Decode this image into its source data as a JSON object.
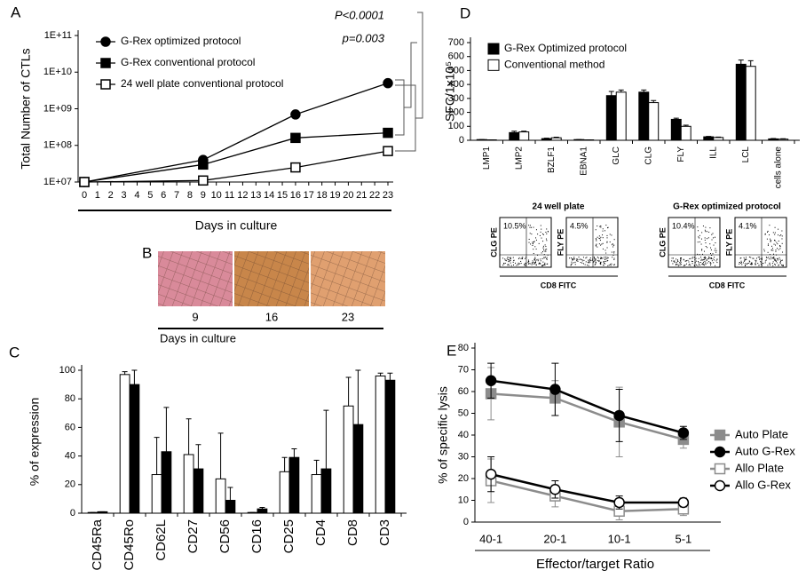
{
  "chart_data": [
    {
      "panel": "A",
      "type": "line",
      "x": [
        0,
        9,
        16,
        23
      ],
      "xlim": [
        0,
        23
      ],
      "xticks": [
        0,
        1,
        2,
        3,
        4,
        5,
        6,
        7,
        8,
        9,
        10,
        11,
        12,
        13,
        14,
        15,
        16,
        17,
        18,
        19,
        20,
        21,
        22,
        23
      ],
      "ylim": [
        10000000.0,
        100000000000.0
      ],
      "log_y": true,
      "yticks": [
        {
          "value": 10000000.0,
          "label": "1E+07"
        },
        {
          "value": 100000000.0,
          "label": "1E+08"
        },
        {
          "value": 1000000000.0,
          "label": "1E+09"
        },
        {
          "value": 10000000000.0,
          "label": "1E+10"
        },
        {
          "value": 100000000000.0,
          "label": "1E+11"
        }
      ],
      "xlabel": "Days in culture",
      "ylabel": "Total Number of CTLs",
      "annotations": [
        "P<0.0001",
        "p=0.003"
      ],
      "legend": "upper left",
      "series": [
        {
          "name": "G-Rex optimized protocol",
          "color": "#000000",
          "marker": "circle",
          "marker_fill": "#000000",
          "values": [
            10000000.0,
            40000000.0,
            700000000.0,
            5000000000.0
          ]
        },
        {
          "name": "G-Rex conventional protocol",
          "color": "#000000",
          "marker": "square",
          "marker_fill": "#000000",
          "values": [
            10000000.0,
            30000000.0,
            160000000.0,
            220000000.0
          ]
        },
        {
          "name": "24 well plate conventional protocol",
          "color": "#000000",
          "marker": "square",
          "marker_fill": "#ffffff",
          "values": [
            10000000.0,
            11000000.0,
            25000000.0,
            70000000.0
          ]
        }
      ]
    },
    {
      "panel": "C",
      "type": "bar",
      "categories": [
        "CD45Ra",
        "CD45Ro",
        "CD62L",
        "CD27",
        "CD56",
        "CD16",
        "CD25",
        "CD4",
        "CD8",
        "CD3"
      ],
      "ylim": [
        0,
        100
      ],
      "yticks": [
        0,
        20,
        40,
        60,
        80,
        100
      ],
      "ylabel": "% of expression",
      "series": [
        {
          "color": "#ffffff",
          "values": [
            0.5,
            97,
            27,
            41,
            24,
            0.5,
            29,
            27,
            75,
            96
          ],
          "errors": [
            0,
            2,
            26,
            25,
            32,
            0,
            10,
            10,
            20,
            2
          ]
        },
        {
          "color": "#000000",
          "values": [
            1,
            90,
            43,
            31,
            9,
            3,
            39,
            31,
            62,
            93
          ],
          "errors": [
            0,
            10,
            31,
            17,
            9,
            1,
            6,
            41,
            38,
            5
          ]
        }
      ]
    },
    {
      "panel": "D",
      "type": "bar",
      "categories": [
        "LMP1",
        "LMP2",
        "BZLF1",
        "EBNA1",
        "GLC",
        "CLG",
        "FLY",
        "ILL",
        "LCL",
        "cells alone"
      ],
      "ylim": [
        0,
        700
      ],
      "yticks": [
        0,
        100,
        200,
        300,
        400,
        500,
        600,
        700
      ],
      "ylabel": "SFC/1x10⁵",
      "legend": "upper left",
      "series": [
        {
          "name": "G-Rex Optimized protocol",
          "color": "#000000",
          "values": [
            5,
            55,
            12,
            5,
            320,
            345,
            150,
            25,
            545,
            10
          ],
          "errors": [
            0,
            10,
            3,
            0,
            30,
            15,
            8,
            3,
            30,
            3
          ]
        },
        {
          "name": "Conventional method",
          "color": "#ffffff",
          "values": [
            3,
            60,
            18,
            3,
            345,
            270,
            100,
            20,
            530,
            8
          ],
          "errors": [
            0,
            5,
            4,
            0,
            15,
            15,
            8,
            3,
            40,
            3
          ]
        }
      ]
    },
    {
      "panel": "E",
      "type": "line",
      "categories": [
        "40-1",
        "20-1",
        "10-1",
        "5-1"
      ],
      "ylim": [
        0,
        80
      ],
      "yticks": [
        0,
        10,
        20,
        30,
        40,
        50,
        60,
        70,
        80
      ],
      "xlabel": "Effector/target Ratio",
      "ylabel": "% of specific lysis",
      "legend": "right",
      "series": [
        {
          "name": "Auto Plate",
          "color": "#8c8c8c",
          "marker": "square",
          "marker_fill": "#8c8c8c",
          "values": [
            59,
            57,
            46,
            38
          ],
          "errors": [
            12,
            8,
            16,
            4
          ]
        },
        {
          "name": "Auto G-Rex",
          "color": "#000000",
          "marker": "circle",
          "marker_fill": "#000000",
          "values": [
            65,
            61,
            49,
            41
          ],
          "errors": [
            8,
            12,
            12,
            3
          ]
        },
        {
          "name": "Allo Plate",
          "color": "#8c8c8c",
          "marker": "square",
          "marker_fill": "#ffffff",
          "values": [
            19,
            12,
            5,
            6
          ],
          "errors": [
            10,
            5,
            4,
            3
          ]
        },
        {
          "name": "Allo G-Rex",
          "color": "#000000",
          "marker": "circle",
          "marker_fill": "#ffffff",
          "values": [
            22,
            15,
            9,
            9
          ],
          "errors": [
            8,
            4,
            3,
            2
          ]
        }
      ]
    }
  ],
  "image_panel": {
    "panel": "B",
    "captions": [
      "9",
      "16",
      "23"
    ],
    "axis_label": "Days in culture"
  },
  "flow_cytometry": {
    "x_label": "CD8 FITC",
    "groups": [
      {
        "title": "24 well plate",
        "plots": [
          {
            "y_label": "CLG PE",
            "percent": "10.5%"
          },
          {
            "y_label": "FLY PE",
            "percent": "4.5%"
          }
        ]
      },
      {
        "title": "G-Rex optimized protocol",
        "plots": [
          {
            "y_label": "CLG PE",
            "percent": "10.4%"
          },
          {
            "y_label": "FLY PE",
            "percent": "4.1%"
          }
        ]
      }
    ]
  }
}
